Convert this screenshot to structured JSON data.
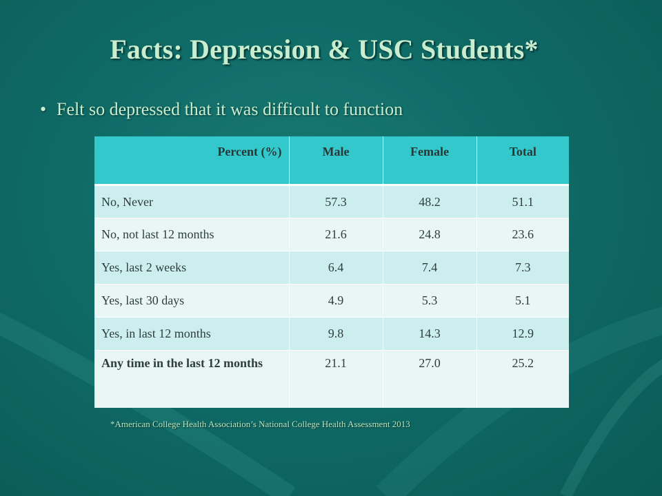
{
  "slide": {
    "title": "Facts: Depression & USC Students*",
    "bullet": "Felt so depressed that it was difficult to function",
    "bullet_marker": "•",
    "footnote": "*American College Health Association’s National College Health Assessment 2013"
  },
  "table": {
    "headers": [
      "Percent (%)",
      "Male",
      "Female",
      "Total"
    ],
    "rows": [
      [
        "No, Never",
        "57.3",
        "48.2",
        "51.1"
      ],
      [
        "No, not last 12 months",
        "21.6",
        "24.8",
        "23.6"
      ],
      [
        "Yes, last 2 weeks",
        "6.4",
        "7.4",
        "7.3"
      ],
      [
        "Yes, last 30 days",
        "4.9",
        "5.3",
        "5.1"
      ],
      [
        "Yes, in last 12 months",
        "9.8",
        "14.3",
        "12.9"
      ],
      [
        "Any time in the last 12 months",
        "21.1",
        "27.0",
        "25.2"
      ]
    ]
  },
  "colors": {
    "background": "#0f6a66",
    "title_text": "#c8eecf",
    "header_fill": "#33c9cc",
    "row_fill_odd": "#cdeeee",
    "row_fill_even": "#e8f6f6"
  }
}
